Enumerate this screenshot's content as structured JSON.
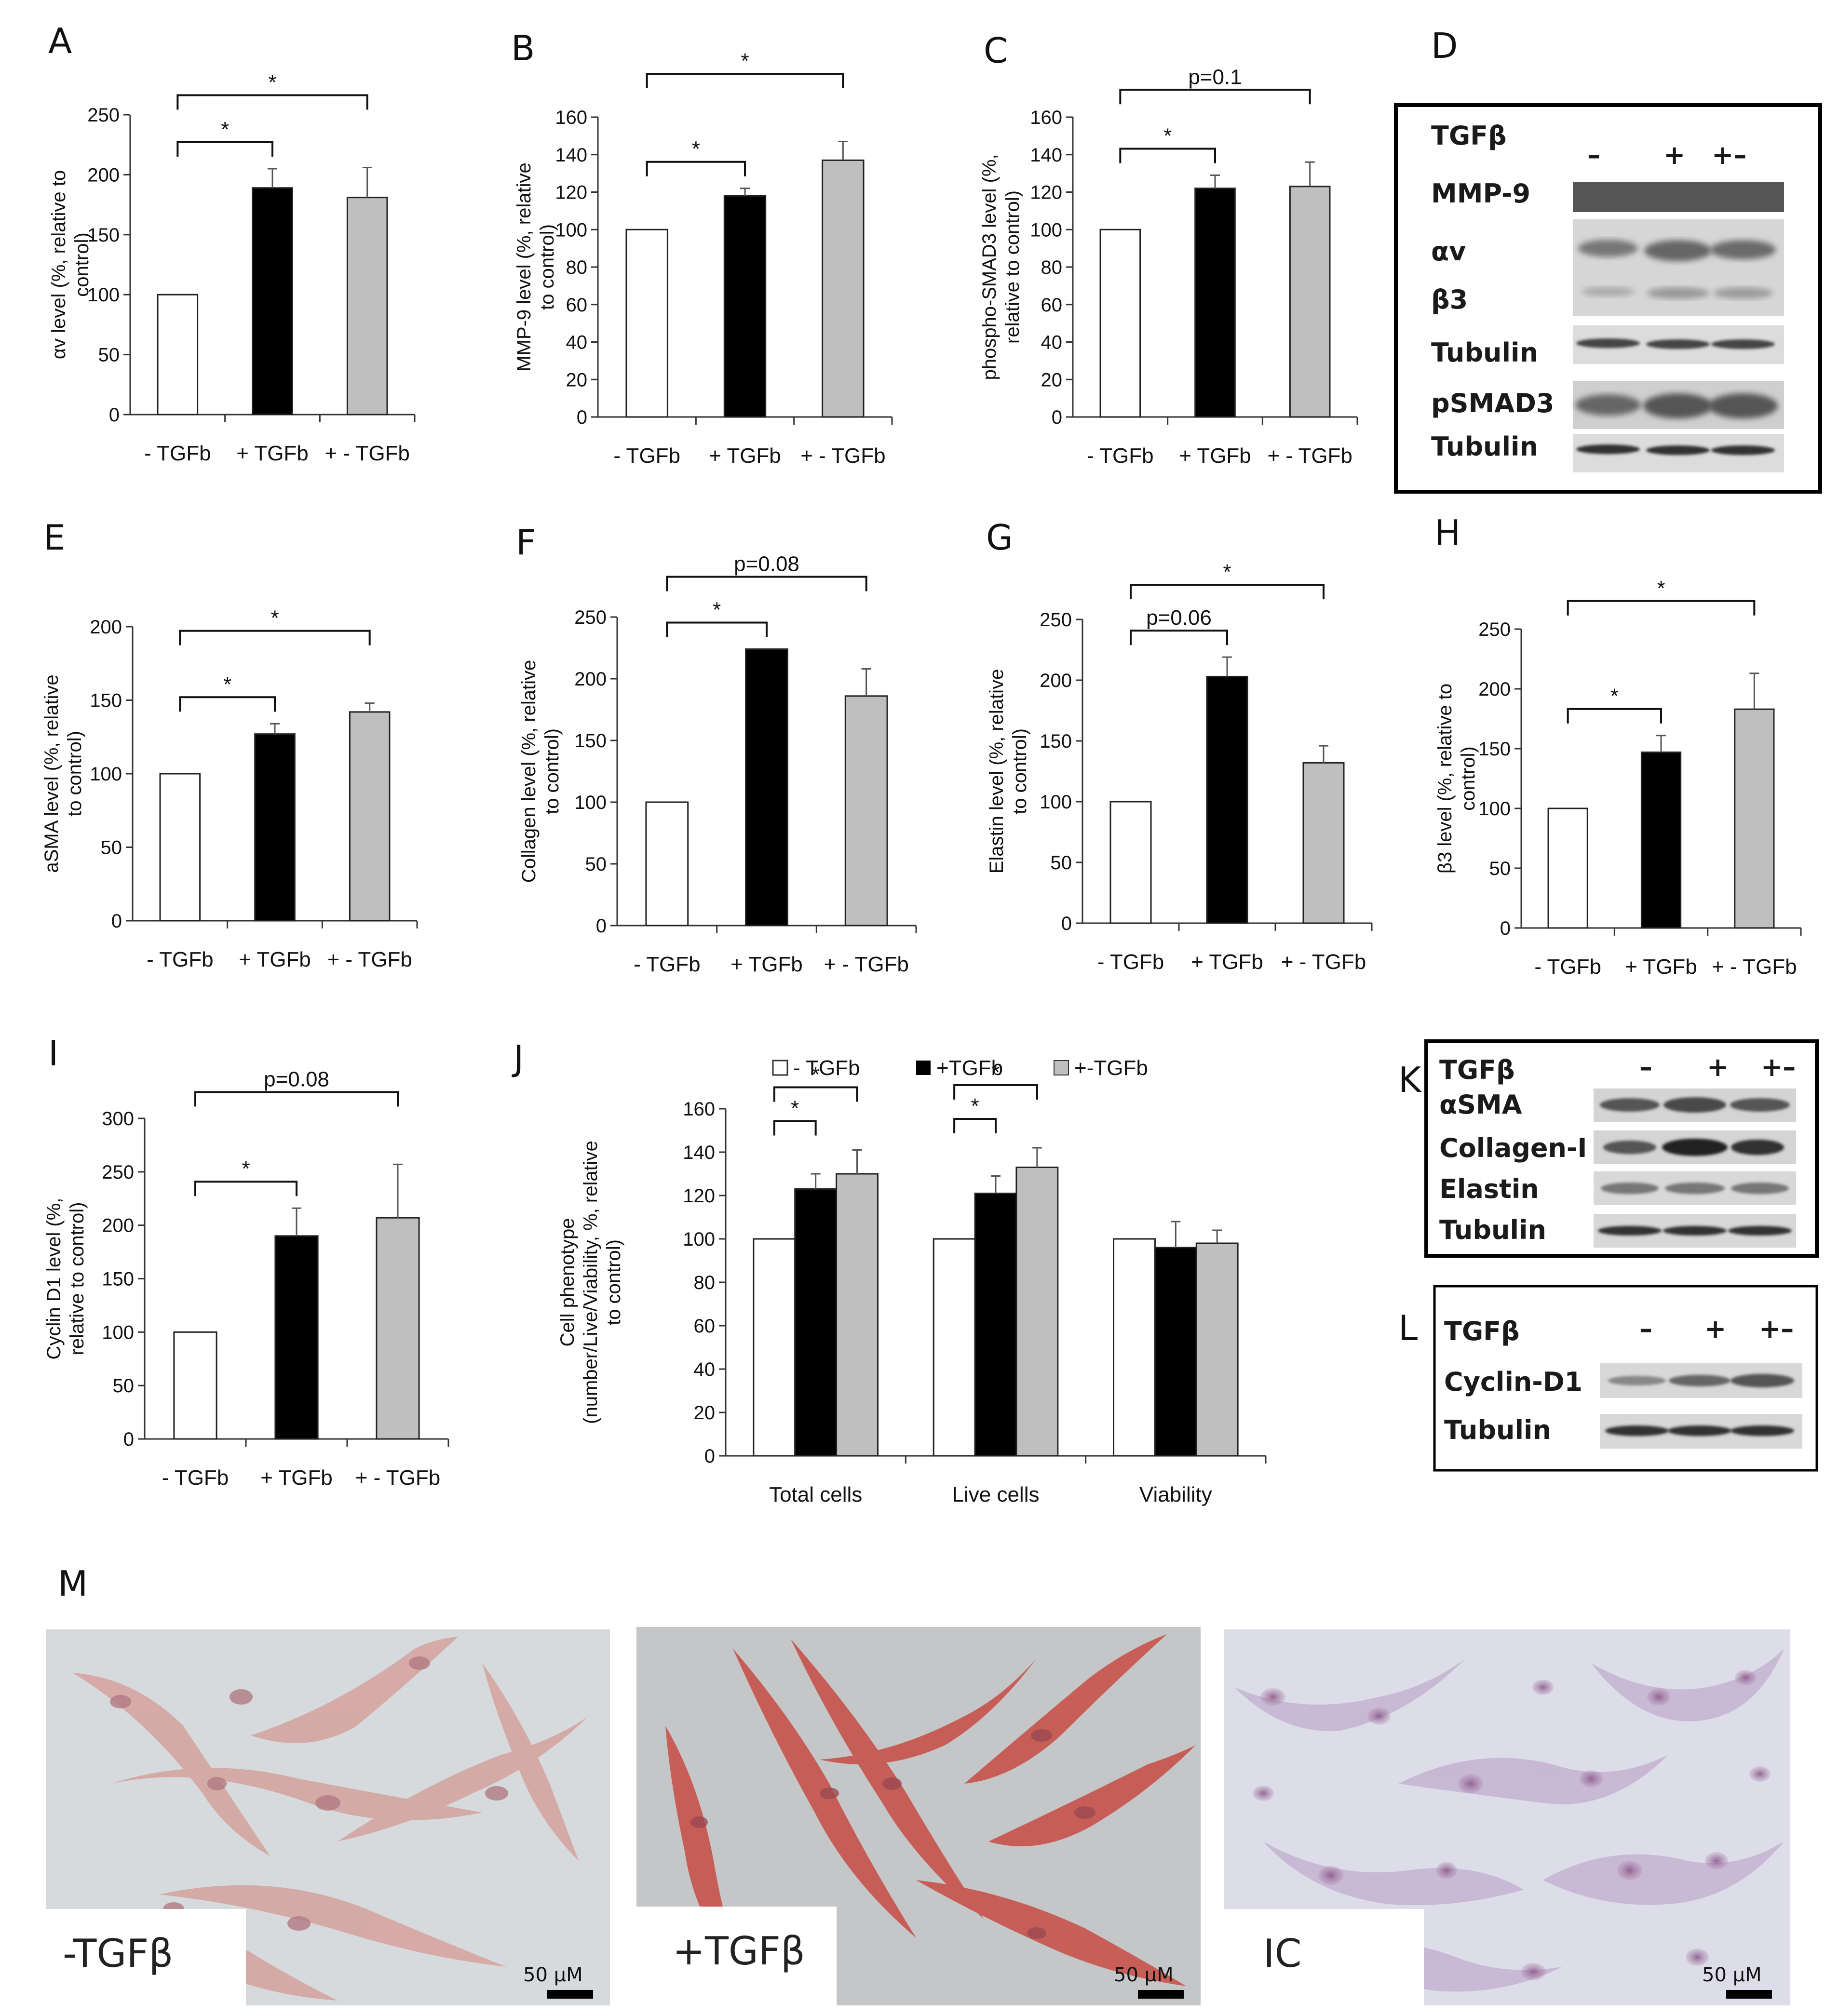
{
  "chart_data": [
    {
      "id": "A",
      "type": "bar",
      "panel_label": "A",
      "categories": [
        "- TGFb",
        "+ TGFb",
        "+ - TGFb"
      ],
      "values": [
        100,
        189,
        181
      ],
      "errors": [
        0,
        16,
        25
      ],
      "ylabel": "αv level (%, relative to control)",
      "ylabel_lines": [
        "αv level (%, relative to",
        "control)"
      ],
      "ylim": [
        0,
        250
      ],
      "yticks": [
        0,
        50,
        100,
        150,
        200,
        250
      ],
      "comparisons": [
        {
          "from": 0,
          "to": 1,
          "label": "*"
        },
        {
          "from": 0,
          "to": 2,
          "label": "*"
        }
      ]
    },
    {
      "id": "B",
      "type": "bar",
      "panel_label": "B",
      "categories": [
        "- TGFb",
        "+ TGFb",
        "+ - TGFb"
      ],
      "values": [
        100,
        118,
        137
      ],
      "errors": [
        0,
        4,
        10
      ],
      "ylabel": "MMP-9 level (%, relative to control)",
      "ylabel_lines": [
        "MMP-9 level (%, relative",
        "to control)"
      ],
      "ylim": [
        0,
        160
      ],
      "yticks": [
        0,
        20,
        40,
        60,
        80,
        100,
        120,
        140,
        160
      ],
      "comparisons": [
        {
          "from": 0,
          "to": 1,
          "label": "*"
        },
        {
          "from": 0,
          "to": 2,
          "label": "*"
        }
      ]
    },
    {
      "id": "C",
      "type": "bar",
      "panel_label": "C",
      "categories": [
        "- TGFb",
        "+ TGFb",
        "+ - TGFb"
      ],
      "values": [
        100,
        122,
        123
      ],
      "errors": [
        0,
        7,
        13
      ],
      "ylabel": "phospho-SMAD3 level (%, relative to control)",
      "ylabel_lines": [
        "phospho-SMAD3 level (%,",
        "relative to control)"
      ],
      "ylim": [
        0,
        160
      ],
      "yticks": [
        0,
        20,
        40,
        60,
        80,
        100,
        120,
        140,
        160
      ],
      "comparisons": [
        {
          "from": 0,
          "to": 1,
          "label": "*"
        },
        {
          "from": 0,
          "to": 2,
          "label": "p=0.1"
        }
      ]
    },
    {
      "id": "E",
      "type": "bar",
      "panel_label": "E",
      "categories": [
        "- TGFb",
        "+ TGFb",
        "+ - TGFb"
      ],
      "values": [
        100,
        127,
        142
      ],
      "errors": [
        0,
        7,
        6
      ],
      "ylabel": "aSMA level (%, relative to control)",
      "ylabel_lines": [
        "aSMA level (%, relative",
        "to control)"
      ],
      "ylim": [
        0,
        200
      ],
      "yticks": [
        0,
        50,
        100,
        150,
        200
      ],
      "comparisons": [
        {
          "from": 0,
          "to": 1,
          "label": "*"
        },
        {
          "from": 0,
          "to": 2,
          "label": "*"
        }
      ]
    },
    {
      "id": "F",
      "type": "bar",
      "panel_label": "F",
      "categories": [
        "- TGFb",
        "+ TGFb",
        "+ - TGFb"
      ],
      "values": [
        100,
        224,
        186
      ],
      "errors": [
        0,
        0,
        22
      ],
      "ylabel": "Collagen level (%, relative to control)",
      "ylabel_lines": [
        "Collagen level (%, relative",
        "to control)"
      ],
      "ylim": [
        0,
        250
      ],
      "yticks": [
        0,
        50,
        100,
        150,
        200,
        250
      ],
      "comparisons": [
        {
          "from": 0,
          "to": 1,
          "label": "*"
        },
        {
          "from": 0,
          "to": 2,
          "label": "p=0.08"
        }
      ]
    },
    {
      "id": "G",
      "type": "bar",
      "panel_label": "G",
      "categories": [
        "- TGFb",
        "+ TGFb",
        "+ - TGFb"
      ],
      "values": [
        100,
        203,
        132
      ],
      "errors": [
        0,
        16,
        14
      ],
      "ylabel": "Elastin level (%, relative to control)",
      "ylabel_lines": [
        "Elastin level (%, relative",
        "to control)"
      ],
      "ylim": [
        0,
        250
      ],
      "yticks": [
        0,
        50,
        100,
        150,
        200,
        250
      ],
      "comparisons": [
        {
          "from": 0,
          "to": 1,
          "label": "p=0.06"
        },
        {
          "from": 0,
          "to": 2,
          "label": "*"
        }
      ]
    },
    {
      "id": "H",
      "type": "bar",
      "panel_label": "H",
      "categories": [
        "- TGFb",
        "+ TGFb",
        "+ - TGFb"
      ],
      "values": [
        100,
        147,
        183
      ],
      "errors": [
        0,
        14,
        30
      ],
      "ylabel": "β3 level (%, relative to control)",
      "ylabel_lines": [
        "β3 level (%, relative to",
        "control)"
      ],
      "ylim": [
        0,
        250
      ],
      "yticks": [
        0,
        50,
        100,
        150,
        200,
        250
      ],
      "comparisons": [
        {
          "from": 0,
          "to": 1,
          "label": "*"
        },
        {
          "from": 0,
          "to": 2,
          "label": "*"
        }
      ]
    },
    {
      "id": "I",
      "type": "bar",
      "panel_label": "I",
      "categories": [
        "- TGFb",
        "+ TGFb",
        "+ - TGFb"
      ],
      "values": [
        100,
        190,
        207
      ],
      "errors": [
        0,
        26,
        50
      ],
      "ylabel": "Cyclin D1 level (%, relative to control)",
      "ylabel_lines": [
        "Cyclin D1 level (%,",
        "relative to control)"
      ],
      "ylim": [
        0,
        300
      ],
      "yticks": [
        0,
        50,
        100,
        150,
        200,
        250,
        300
      ],
      "comparisons": [
        {
          "from": 0,
          "to": 1,
          "label": "*"
        },
        {
          "from": 0,
          "to": 2,
          "label": "p=0.08"
        }
      ]
    },
    {
      "id": "J",
      "type": "bar",
      "panel_label": "J",
      "categories": [
        "Total cells",
        "Live cells",
        "Viability"
      ],
      "series": [
        {
          "name": "- TGFb",
          "values": [
            100,
            100,
            100
          ],
          "errors": [
            0,
            0,
            0
          ]
        },
        {
          "name": "+TGFb",
          "values": [
            123,
            121,
            96
          ],
          "errors": [
            7,
            8,
            12
          ]
        },
        {
          "name": "+-TGFb",
          "values": [
            130,
            133,
            98
          ],
          "errors": [
            11,
            9,
            6
          ]
        }
      ],
      "ylabel": "Cell phenotype (number/Live/Viability, %, relative to control)",
      "ylabel_lines": [
        "Cell phenotype",
        "(number/Live/Viability, %, relative",
        "to control)"
      ],
      "ylim": [
        0,
        160
      ],
      "yticks": [
        0,
        20,
        40,
        60,
        80,
        100,
        120,
        140,
        160
      ],
      "comparisons": [
        {
          "group": 0,
          "from": 0,
          "to": 1,
          "label": "*"
        },
        {
          "group": 0,
          "from": 0,
          "to": 2,
          "label": "*"
        },
        {
          "group": 1,
          "from": 0,
          "to": 1,
          "label": "*"
        },
        {
          "group": 1,
          "from": 0,
          "to": 2,
          "label": "*"
        }
      ]
    }
  ],
  "colors": {
    "minus": "#ffffff",
    "plus": "#000000",
    "plusminus": "#bfbfbf",
    "axis": "#333333"
  },
  "blots": {
    "D": {
      "panel_label": "D",
      "header": "TGFβ",
      "lanes": [
        "–",
        "+",
        "+–"
      ],
      "rows": [
        "MMP-9",
        "αv",
        "β3",
        "Tubulin",
        "pSMAD3",
        "Tubulin"
      ]
    },
    "K": {
      "panel_label": "K",
      "header": "TGFβ",
      "lanes": [
        "–",
        "+",
        "+–"
      ],
      "rows": [
        "αSMA",
        "Collagen-I",
        "Elastin",
        "Tubulin"
      ]
    },
    "L": {
      "panel_label": "L",
      "header": "TGFβ",
      "lanes": [
        "–",
        "+",
        "+–"
      ],
      "rows": [
        "Cyclin-D1",
        "Tubulin"
      ]
    }
  },
  "micrographs": {
    "panel_label": "M",
    "images": [
      {
        "label": "-TGFβ",
        "scale_bar": "50 μM"
      },
      {
        "label": "+TGFβ",
        "scale_bar": "50 μM"
      },
      {
        "label": "IC",
        "scale_bar": "50 μM"
      }
    ]
  }
}
